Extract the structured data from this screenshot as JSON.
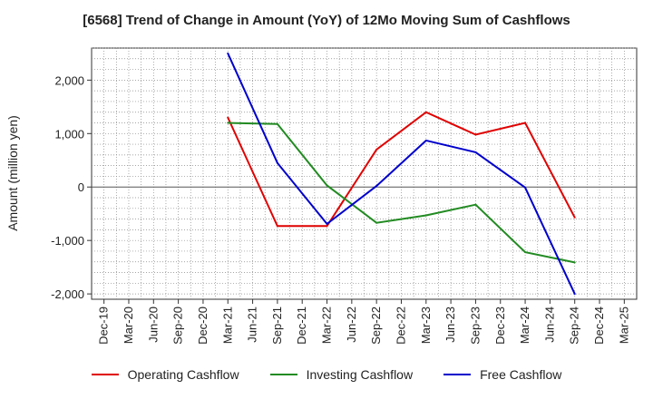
{
  "chart_data": {
    "type": "line",
    "title": "[6568]  Trend of Change in Amount (YoY) of 12Mo Moving Sum of Cashflows",
    "xlabel": "",
    "ylabel": "Amount (million yen)",
    "ylim": [
      -2100,
      2600
    ],
    "yticks": [
      -2000,
      -1000,
      0,
      1000,
      2000
    ],
    "ytick_labels": [
      "-2,000",
      "-1,000",
      "0",
      "1,000",
      "2,000"
    ],
    "categories": [
      "Dec-19",
      "Mar-20",
      "Jun-20",
      "Sep-20",
      "Dec-20",
      "Mar-21",
      "Jun-21",
      "Sep-21",
      "Dec-21",
      "Mar-22",
      "Jun-22",
      "Sep-22",
      "Dec-22",
      "Mar-23",
      "Jun-23",
      "Sep-23",
      "Dec-23",
      "Mar-24",
      "Jun-24",
      "Sep-24",
      "Dec-24",
      "Mar-25"
    ],
    "grid": true,
    "legend_position": "bottom",
    "series": [
      {
        "name": "Operating Cashflow",
        "color": "#e00000",
        "values": [
          null,
          null,
          null,
          null,
          null,
          1300,
          null,
          -730,
          null,
          -730,
          null,
          700,
          null,
          1400,
          null,
          980,
          null,
          1200,
          null,
          -570,
          null,
          null
        ]
      },
      {
        "name": "Investing Cashflow",
        "color": "#228b22",
        "values": [
          null,
          null,
          null,
          null,
          null,
          1200,
          null,
          1180,
          null,
          30,
          null,
          -670,
          null,
          -530,
          null,
          -330,
          null,
          -1220,
          null,
          -1410,
          null,
          null
        ]
      },
      {
        "name": "Free Cashflow",
        "color": "#0000cc",
        "values": [
          null,
          null,
          null,
          null,
          null,
          2500,
          null,
          450,
          null,
          -690,
          null,
          20,
          null,
          870,
          null,
          650,
          null,
          -10,
          null,
          -2000,
          null,
          null
        ]
      }
    ]
  }
}
